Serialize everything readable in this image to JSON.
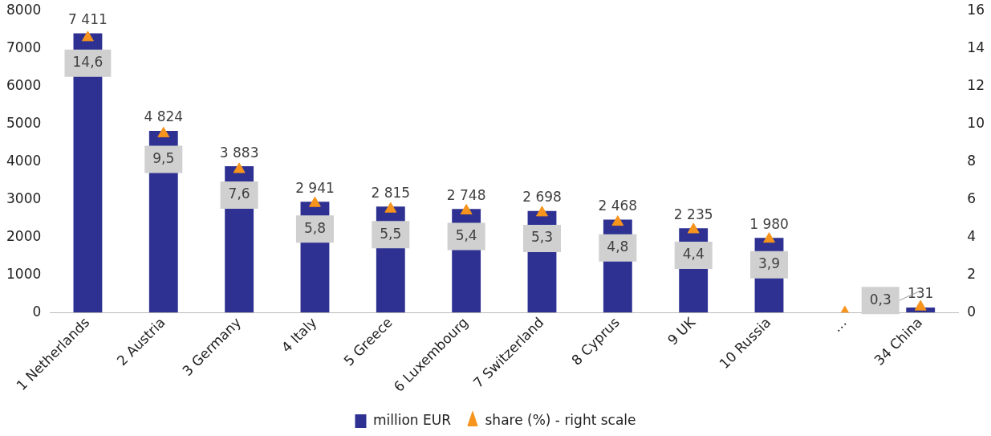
{
  "chart_data": {
    "type": "bar",
    "categories": [
      "1 Netherlands",
      "2 Austria",
      "3 Germany",
      "4 Italy",
      "5 Greece",
      "6 Luxembourg",
      "7 Switzerland",
      "8 Cyprus",
      "9 UK",
      "10 Russia",
      "…",
      "34 China"
    ],
    "series": [
      {
        "name": "million EUR",
        "color": "#2e3192",
        "values": [
          7411,
          4824,
          3883,
          2941,
          2815,
          2748,
          2698,
          2468,
          2235,
          1980,
          null,
          131
        ],
        "value_labels": [
          "7 411",
          "4 824",
          "3 883",
          "2 941",
          "2 815",
          "2 748",
          "2 698",
          "2 468",
          "2 235",
          "1 980",
          null,
          "131"
        ]
      },
      {
        "name": "share (%) - right scale",
        "type": "scatter",
        "axis": "y2",
        "marker": "triangle",
        "color": "#f7941d",
        "x": [
          "1 Netherlands",
          "2 Austria",
          "3 Germany",
          "4 Italy",
          "5 Greece",
          "6 Luxembourg",
          "7 Switzerland",
          "8 Cyprus",
          "9 UK",
          "10 Russia",
          "…",
          "34 China"
        ],
        "values": [
          14.6,
          9.5,
          7.6,
          5.8,
          5.5,
          5.4,
          5.3,
          4.8,
          4.4,
          3.9,
          0,
          0.3
        ],
        "value_labels": [
          "14,6",
          "9,5",
          "7,6",
          "5,8",
          "5,5",
          "5,4",
          "5,3",
          "4,8",
          "4,4",
          "3,9",
          null,
          "0,3"
        ]
      }
    ],
    "ylim": [
      0,
      8000
    ],
    "yticks": [
      0,
      1000,
      2000,
      3000,
      4000,
      5000,
      6000,
      7000,
      8000
    ],
    "y2lim": [
      0,
      16
    ],
    "y2ticks": [
      0,
      2,
      4,
      6,
      8,
      10,
      12,
      14,
      16
    ],
    "grid": false,
    "legend": "bottom"
  }
}
